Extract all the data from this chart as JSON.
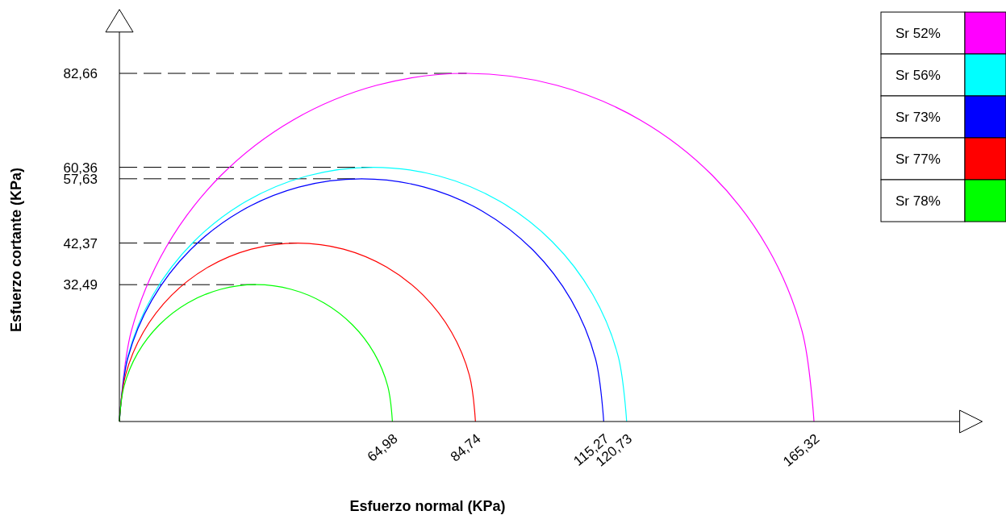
{
  "chart_data": {
    "type": "line",
    "xlabel": "Esfuerzo normal  (KPa)",
    "ylabel": "Esfuerzo cortante  (KPa)",
    "xlim": [
      0,
      200
    ],
    "ylim": [
      0,
      94
    ],
    "xticks": [
      {
        "value": 64.98,
        "label": "64,98"
      },
      {
        "value": 84.74,
        "label": "84,74"
      },
      {
        "value": 115.27,
        "label": "115,27"
      },
      {
        "value": 120.73,
        "label": "120,73"
      },
      {
        "value": 165.32,
        "label": "165,32"
      }
    ],
    "yticks": [
      {
        "value": 32.49,
        "label": "32,49"
      },
      {
        "value": 42.37,
        "label": "42,37"
      },
      {
        "value": 57.63,
        "label": "57,63"
      },
      {
        "value": 60.36,
        "label": "60,36"
      },
      {
        "value": 82.66,
        "label": "82,66"
      }
    ],
    "grid": false,
    "legend": "top right",
    "marker": "none",
    "line_style": "solid",
    "ref_lines": [
      {
        "axis": "y",
        "value": 82.66,
        "line_style": "dashed",
        "color": "#000000"
      },
      {
        "axis": "y",
        "value": 60.36,
        "line_style": "dashed",
        "color": "#000000"
      },
      {
        "axis": "y",
        "value": 57.63,
        "line_style": "dashed",
        "color": "#000000"
      },
      {
        "axis": "y",
        "value": 42.37,
        "line_style": "dashed",
        "color": "#000000"
      },
      {
        "axis": "y",
        "value": 32.49,
        "line_style": "dashed",
        "color": "#000000"
      }
    ],
    "series": [
      {
        "name": "Sr 52%",
        "color": "#ff00ff",
        "x": [
          0,
          2.82,
          11.08,
          24.21,
          41.33,
          61.27,
          82.66,
          104.05,
          123.99,
          141.11,
          154.24,
          162.5,
          165.32
        ],
        "values": [
          0,
          21.39,
          41.33,
          58.45,
          71.58,
          79.84,
          82.66,
          79.84,
          71.58,
          58.45,
          41.33,
          21.39,
          0
        ]
      },
      {
        "name": "Sr 56%",
        "color": "#00ffff",
        "x": [
          0,
          2.05,
          8.08,
          17.68,
          30.18,
          44.74,
          60.37,
          75.99,
          90.55,
          103.05,
          112.65,
          118.68,
          120.73
        ],
        "values": [
          0,
          15.62,
          30.18,
          42.68,
          52.28,
          58.31,
          60.36,
          58.31,
          52.28,
          42.68,
          30.18,
          15.62,
          0
        ]
      },
      {
        "name": "Sr 73%",
        "color": "#0000ff",
        "x": [
          0,
          1.97,
          7.73,
          16.89,
          28.82,
          42.72,
          57.64,
          72.56,
          86.45,
          98.39,
          107.55,
          113.31,
          115.27
        ],
        "values": [
          0,
          14.92,
          28.82,
          40.75,
          49.91,
          55.67,
          57.63,
          55.67,
          49.91,
          40.75,
          28.82,
          14.92,
          0
        ]
      },
      {
        "name": "Sr 77%",
        "color": "#ff0000",
        "x": [
          0,
          1.44,
          5.68,
          12.41,
          21.18,
          31.4,
          42.37,
          53.34,
          63.56,
          72.33,
          79.06,
          83.3,
          84.74
        ],
        "values": [
          0,
          10.97,
          21.19,
          29.96,
          36.69,
          40.93,
          42.37,
          40.93,
          36.69,
          29.96,
          21.19,
          10.97,
          0
        ]
      },
      {
        "name": "Sr 78%",
        "color": "#00ff00",
        "x": [
          0,
          1.11,
          4.35,
          9.52,
          16.24,
          24.08,
          32.49,
          40.9,
          48.74,
          55.46,
          60.63,
          63.87,
          64.98
        ],
        "values": [
          0,
          8.41,
          16.25,
          22.97,
          28.14,
          31.38,
          32.49,
          31.38,
          28.14,
          22.97,
          16.25,
          8.41,
          0
        ]
      }
    ]
  }
}
